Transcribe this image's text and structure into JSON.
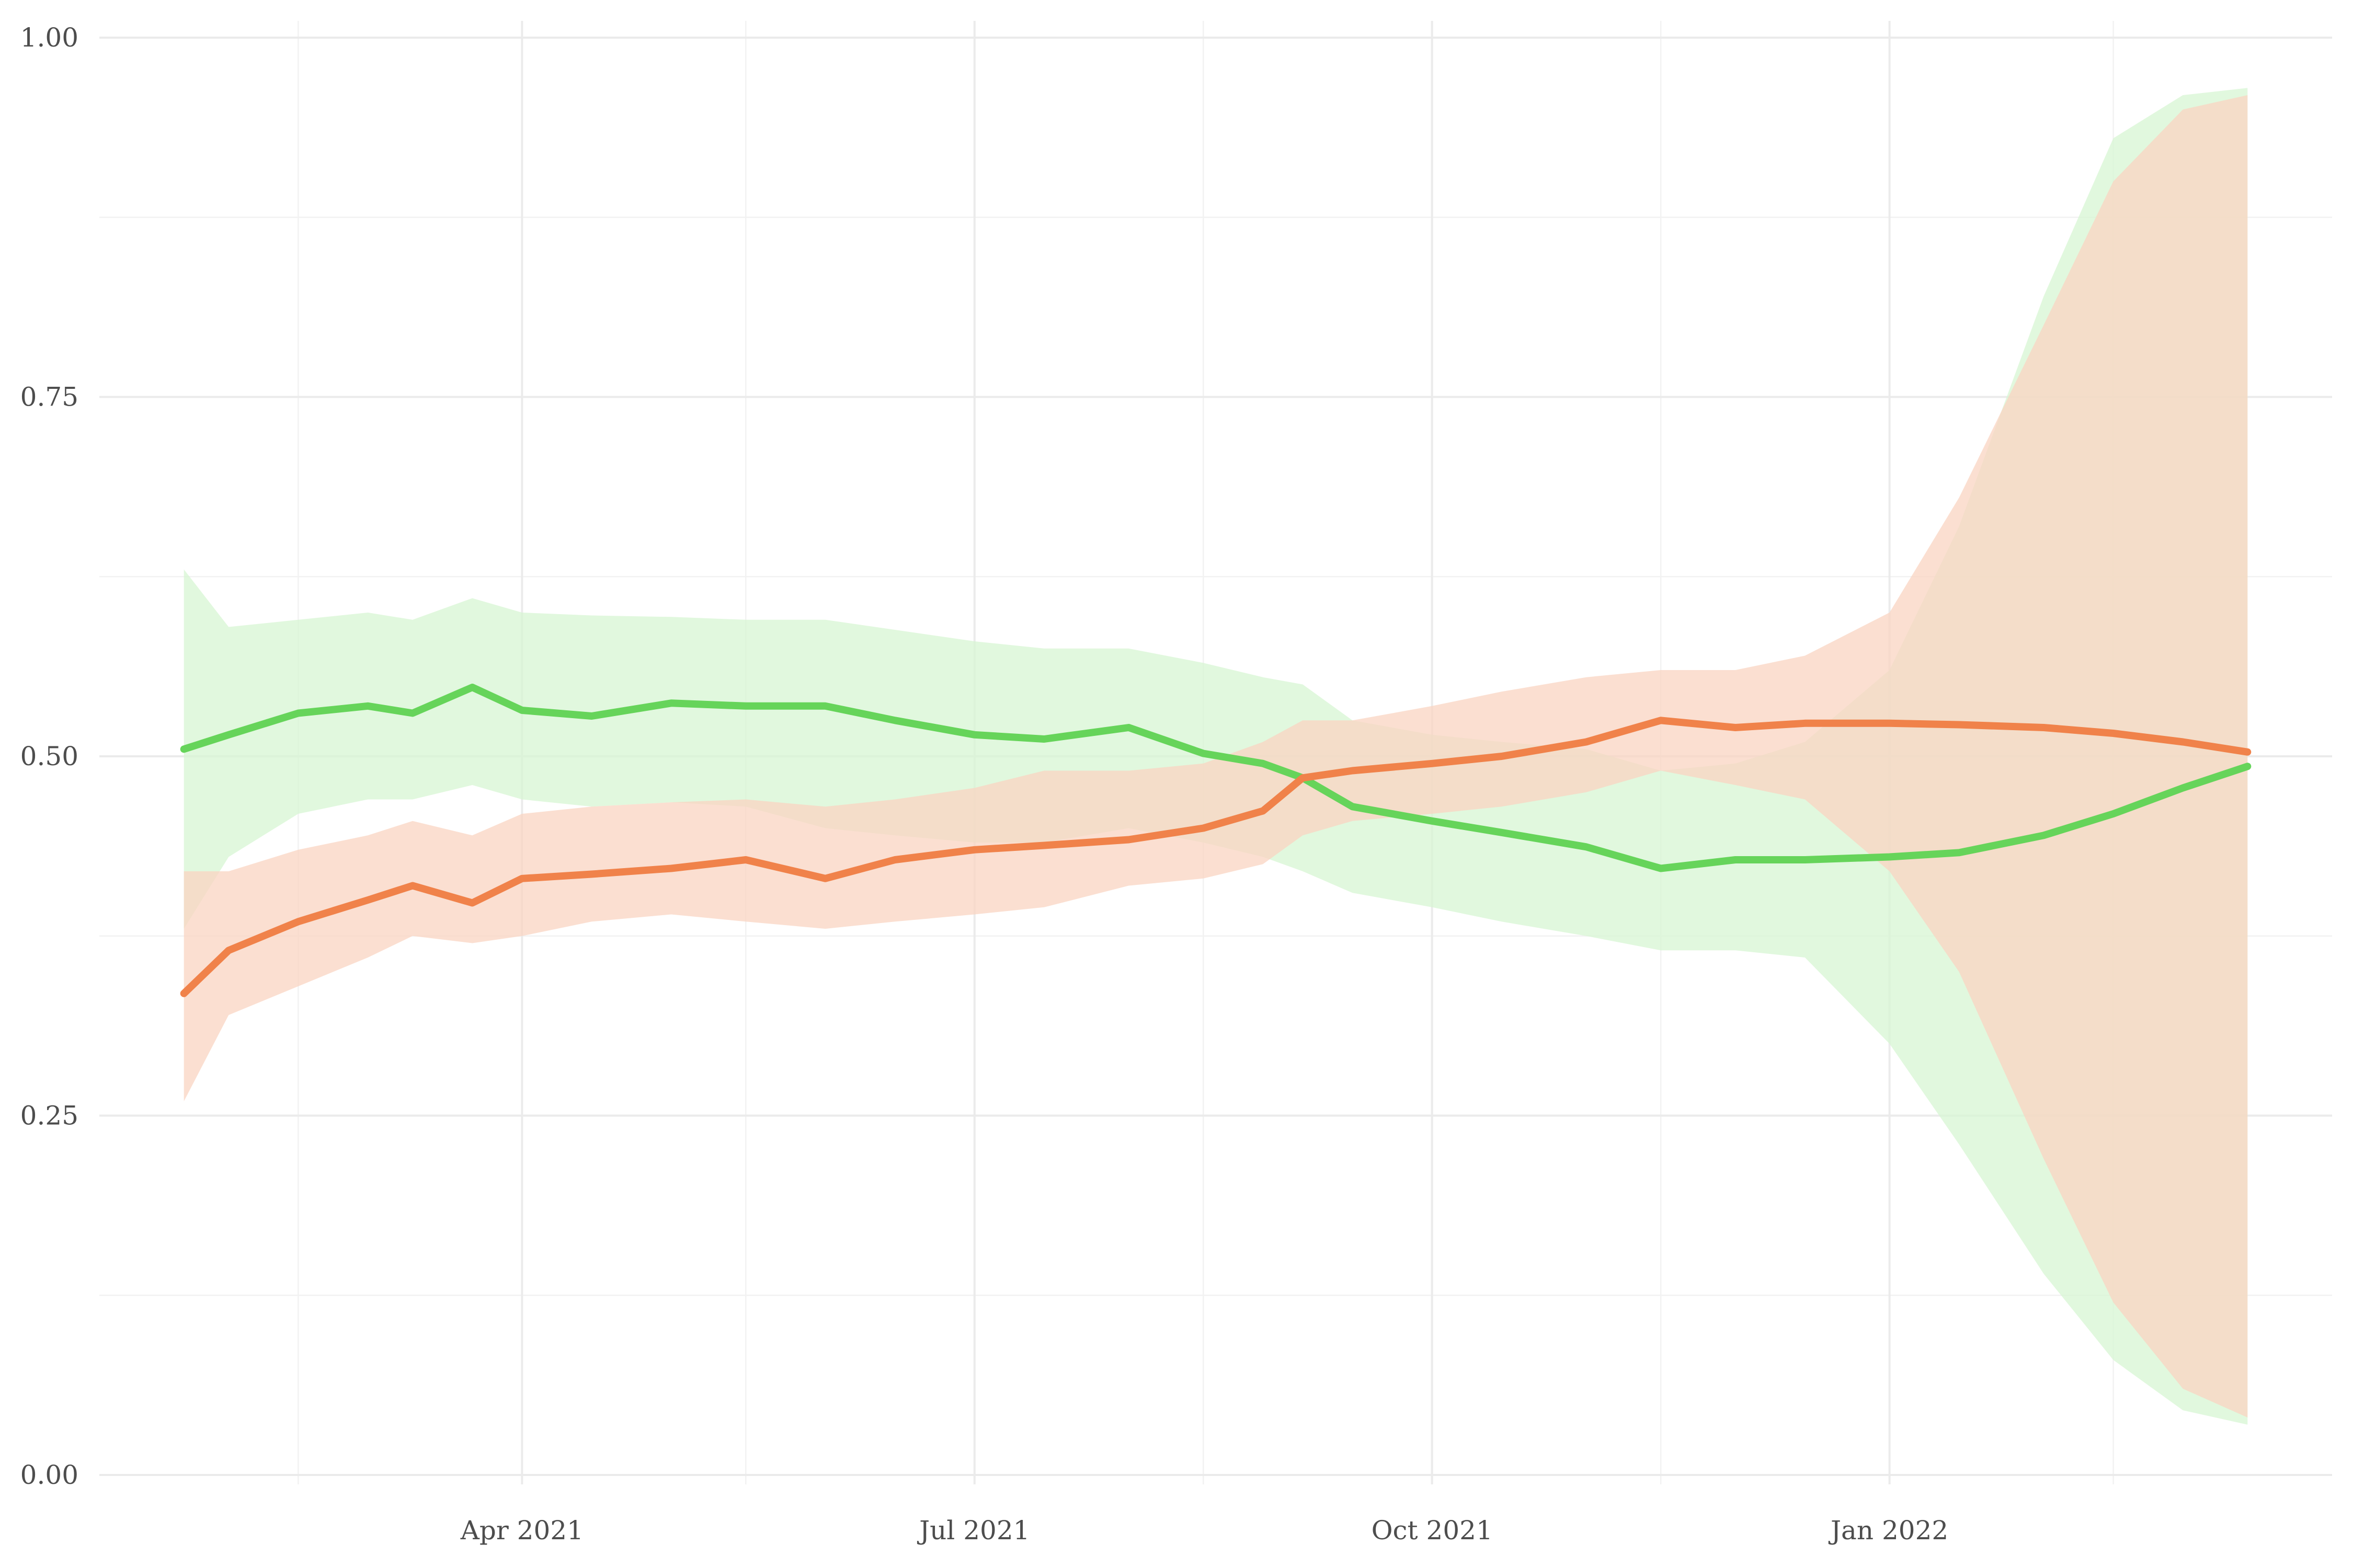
{
  "chart_data": {
    "type": "line",
    "title": "",
    "xlabel": "",
    "ylabel": "",
    "xlim": [
      "2021-01-06",
      "2022-03-31"
    ],
    "ylim": [
      0,
      1
    ],
    "grid": true,
    "legend": "none",
    "x_ticks": [
      {
        "date": "2021-04-01",
        "label": "Apr 2021"
      },
      {
        "date": "2021-07-01",
        "label": "Jul 2021"
      },
      {
        "date": "2021-10-01",
        "label": "Oct 2021"
      },
      {
        "date": "2022-01-01",
        "label": "Jan 2022"
      }
    ],
    "x_minor_ticks": [
      "2021-02-15",
      "2021-05-16",
      "2021-08-16",
      "2021-11-16",
      "2022-02-15"
    ],
    "y_ticks": [
      {
        "value": 0.0,
        "label": "0.00"
      },
      {
        "value": 0.25,
        "label": "0.25"
      },
      {
        "value": 0.5,
        "label": "0.50"
      },
      {
        "value": 0.75,
        "label": "0.75"
      },
      {
        "value": 1.0,
        "label": "1.00"
      }
    ],
    "y_minor_ticks": [
      0.125,
      0.375,
      0.625,
      0.875
    ],
    "series": [
      {
        "color": "#66d45a",
        "band_color": "#d7f5d3",
        "x": [
          "2021-01-23",
          "2021-02-01",
          "2021-02-15",
          "2021-03-01",
          "2021-03-10",
          "2021-03-22",
          "2021-04-01",
          "2021-04-15",
          "2021-05-01",
          "2021-05-16",
          "2021-06-01",
          "2021-06-15",
          "2021-07-01",
          "2021-07-15",
          "2021-08-01",
          "2021-08-16",
          "2021-08-28",
          "2021-09-05",
          "2021-09-15",
          "2021-10-01",
          "2021-10-15",
          "2021-11-01",
          "2021-11-16",
          "2021-12-01",
          "2021-12-15",
          "2022-01-01",
          "2022-01-15",
          "2022-02-01",
          "2022-02-15",
          "2022-03-01",
          "2022-03-14"
        ],
        "values": [
          0.505,
          0.515,
          0.53,
          0.535,
          0.53,
          0.548,
          0.532,
          0.528,
          0.537,
          0.535,
          0.535,
          0.525,
          0.515,
          0.512,
          0.52,
          0.502,
          0.495,
          0.485,
          0.465,
          0.455,
          0.447,
          0.437,
          0.422,
          0.428,
          0.428,
          0.43,
          0.433,
          0.445,
          0.46,
          0.478,
          0.493
        ],
        "lower": [
          0.38,
          0.43,
          0.46,
          0.47,
          0.47,
          0.48,
          0.47,
          0.465,
          0.468,
          0.465,
          0.45,
          0.445,
          0.44,
          0.44,
          0.45,
          0.44,
          0.43,
          0.42,
          0.405,
          0.395,
          0.385,
          0.375,
          0.365,
          0.365,
          0.36,
          0.3,
          0.23,
          0.14,
          0.08,
          0.045,
          0.035
        ],
        "upper": [
          0.63,
          0.59,
          0.595,
          0.6,
          0.595,
          0.61,
          0.6,
          0.598,
          0.597,
          0.595,
          0.595,
          0.588,
          0.58,
          0.575,
          0.575,
          0.565,
          0.555,
          0.55,
          0.525,
          0.515,
          0.51,
          0.505,
          0.49,
          0.495,
          0.51,
          0.56,
          0.66,
          0.82,
          0.93,
          0.96,
          0.965
        ]
      },
      {
        "color": "#f0824a",
        "band_color": "#f9d4c2",
        "x": [
          "2021-01-23",
          "2021-02-01",
          "2021-02-15",
          "2021-03-01",
          "2021-03-10",
          "2021-03-22",
          "2021-04-01",
          "2021-04-15",
          "2021-05-01",
          "2021-05-16",
          "2021-06-01",
          "2021-06-15",
          "2021-07-01",
          "2021-07-15",
          "2021-08-01",
          "2021-08-16",
          "2021-08-28",
          "2021-09-05",
          "2021-09-15",
          "2021-10-01",
          "2021-10-15",
          "2021-11-01",
          "2021-11-16",
          "2021-12-01",
          "2021-12-15",
          "2022-01-01",
          "2022-01-15",
          "2022-02-01",
          "2022-02-15",
          "2022-03-01",
          "2022-03-14"
        ],
        "values": [
          0.335,
          0.365,
          0.385,
          0.4,
          0.41,
          0.398,
          0.415,
          0.418,
          0.422,
          0.428,
          0.415,
          0.428,
          0.435,
          0.438,
          0.442,
          0.45,
          0.462,
          0.485,
          0.49,
          0.495,
          0.5,
          0.51,
          0.525,
          0.52,
          0.523,
          0.523,
          0.522,
          0.52,
          0.516,
          0.51,
          0.503
        ],
        "lower": [
          0.26,
          0.32,
          0.34,
          0.36,
          0.375,
          0.37,
          0.375,
          0.385,
          0.39,
          0.385,
          0.38,
          0.385,
          0.39,
          0.395,
          0.41,
          0.415,
          0.425,
          0.445,
          0.455,
          0.46,
          0.465,
          0.475,
          0.49,
          0.48,
          0.47,
          0.42,
          0.35,
          0.22,
          0.12,
          0.06,
          0.04
        ],
        "upper": [
          0.42,
          0.42,
          0.435,
          0.445,
          0.455,
          0.445,
          0.46,
          0.465,
          0.468,
          0.47,
          0.465,
          0.47,
          0.478,
          0.49,
          0.49,
          0.495,
          0.51,
          0.525,
          0.525,
          0.535,
          0.545,
          0.555,
          0.56,
          0.56,
          0.57,
          0.6,
          0.68,
          0.8,
          0.9,
          0.95,
          0.96
        ]
      }
    ]
  }
}
